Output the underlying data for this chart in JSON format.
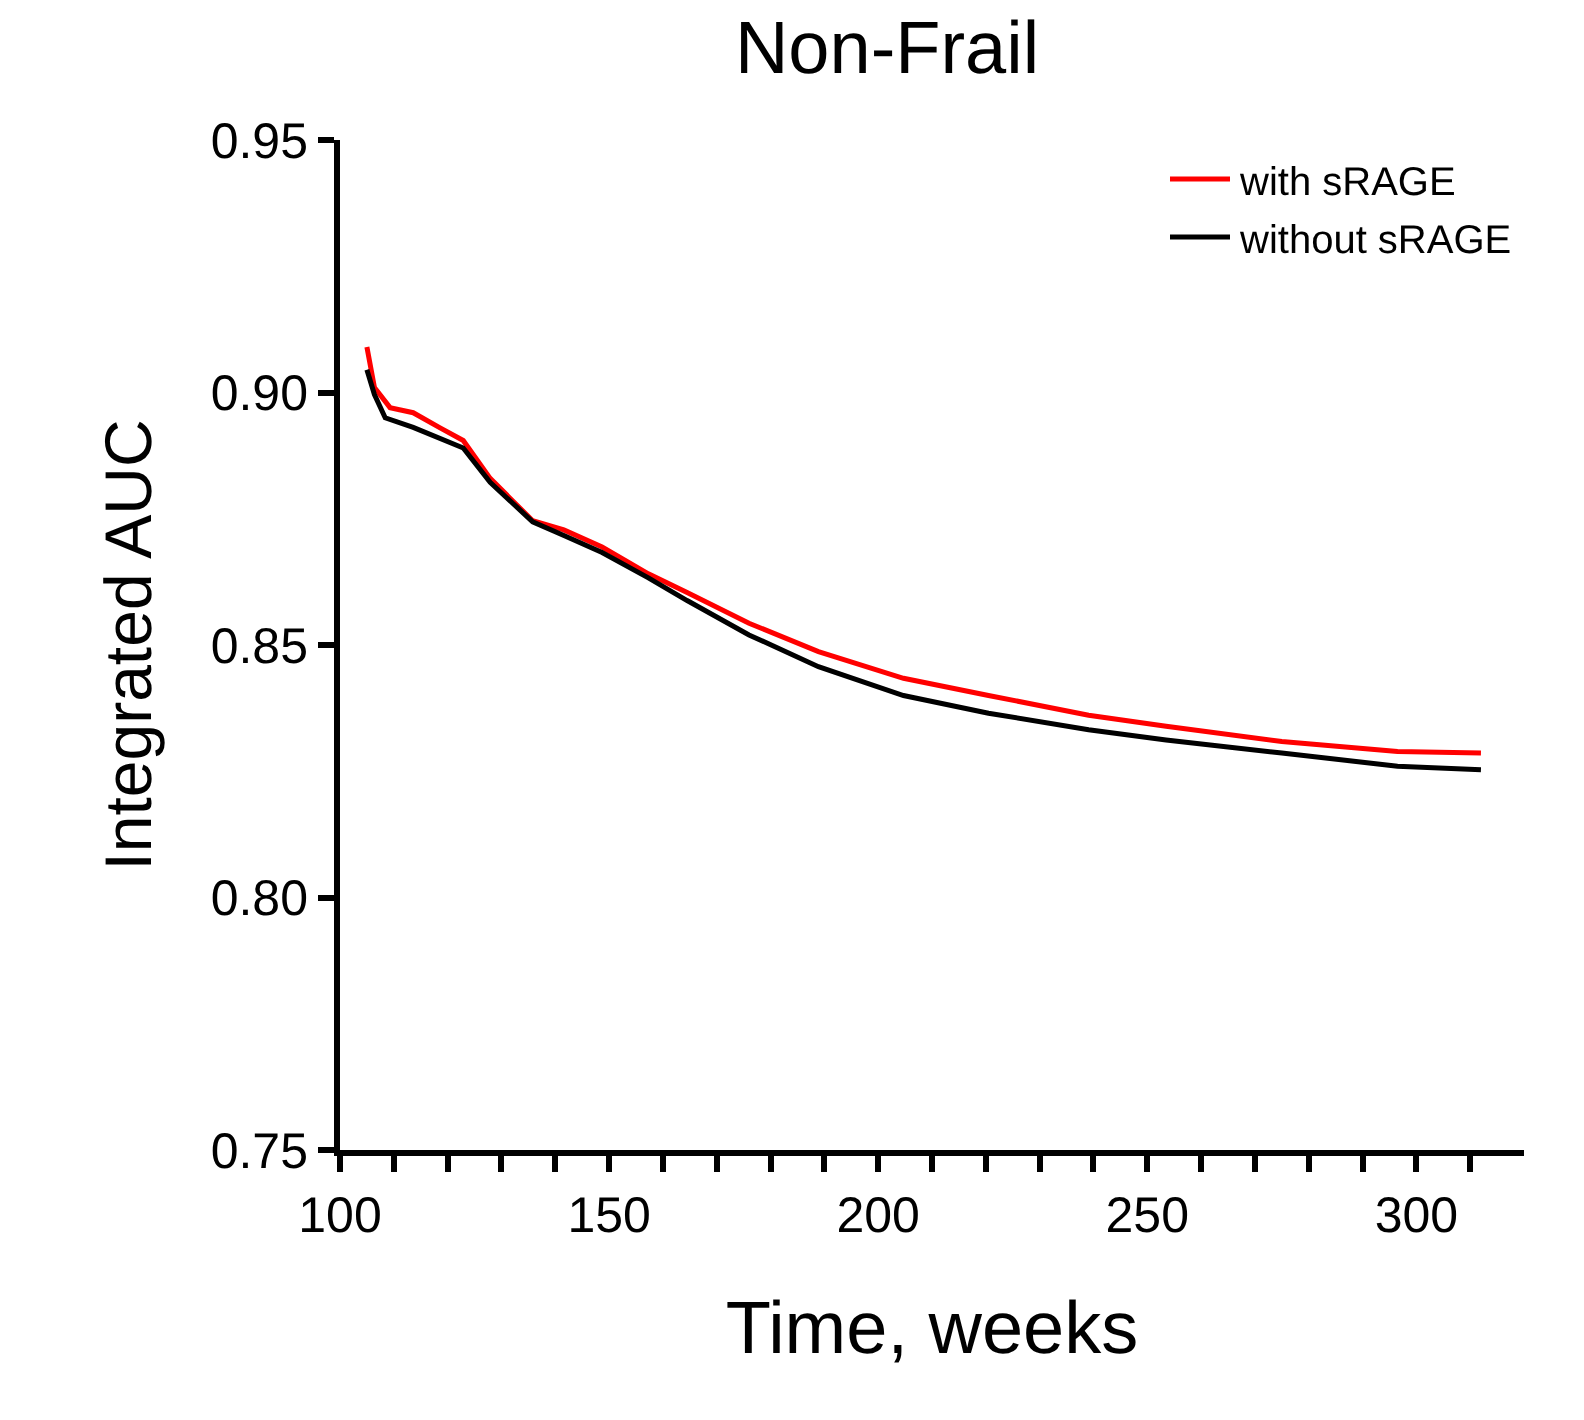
{
  "chart_data": {
    "type": "line",
    "title": "Non-Frail",
    "xlabel": "Time, weeks",
    "ylabel": "Integrated AUC",
    "xlim": [
      100,
      320
    ],
    "ylim": [
      0.75,
      0.95
    ],
    "xticks": [
      100,
      {
        "value": 110,
        "label": null
      },
      {
        "value": 120,
        "label": null
      },
      {
        "value": 130,
        "label": null
      },
      {
        "value": 140,
        "label": null
      },
      150,
      {
        "value": 160,
        "label": null
      },
      {
        "value": 170,
        "label": null
      },
      {
        "value": 180,
        "label": null
      },
      {
        "value": 190,
        "label": null
      },
      200,
      {
        "value": 210,
        "label": null
      },
      {
        "value": 220,
        "label": null
      },
      {
        "value": 230,
        "label": null
      },
      {
        "value": 240,
        "label": null
      },
      250,
      {
        "value": 260,
        "label": null
      },
      {
        "value": 270,
        "label": null
      },
      {
        "value": 280,
        "label": null
      },
      {
        "value": 290,
        "label": null
      },
      300,
      {
        "value": 310,
        "label": null
      }
    ],
    "yticks": [
      {
        "value": 0.75,
        "label": "0.75"
      },
      {
        "value": 0.8,
        "label": "0.80"
      },
      {
        "value": 0.85,
        "label": "0.85"
      },
      {
        "value": 0.9,
        "label": "0.90"
      },
      {
        "value": 0.95,
        "label": "0.95"
      }
    ],
    "legend": "top right",
    "marker": "none",
    "line_style": "solid",
    "series": [
      {
        "name": "with sRAGE",
        "color": "#ff0000",
        "x": [
          105,
          106.4,
          109.3,
          113.6,
          118.6,
          122.9,
          127.9,
          135.8,
          141.6,
          148.7,
          157.3,
          164.5,
          176,
          188.9,
          204.7,
          220.5,
          239.1,
          253.5,
          275,
          296.5,
          312
        ],
        "values": [
          0.909,
          0.901,
          0.897,
          0.896,
          0.893,
          0.8905,
          0.883,
          0.8746,
          0.8728,
          0.8694,
          0.8641,
          0.8604,
          0.8543,
          0.8487,
          0.8434,
          0.84,
          0.8361,
          0.8339,
          0.8309,
          0.8289,
          0.8286
        ]
      },
      {
        "name": "without sRAGE",
        "color": "#000000",
        "x": [
          105,
          106.4,
          108.4,
          113.6,
          122.9,
          127.9,
          135.8,
          141.6,
          148.7,
          157.3,
          164.5,
          176,
          188.9,
          204.7,
          220.5,
          239.1,
          253.5,
          275,
          296.5,
          312
        ],
        "values": [
          0.9045,
          0.8996,
          0.895,
          0.8931,
          0.889,
          0.8822,
          0.8744,
          0.8717,
          0.8683,
          0.8633,
          0.8588,
          0.852,
          0.8457,
          0.84,
          0.8365,
          0.8332,
          0.8312,
          0.8286,
          0.826,
          0.8253
        ]
      }
    ]
  }
}
